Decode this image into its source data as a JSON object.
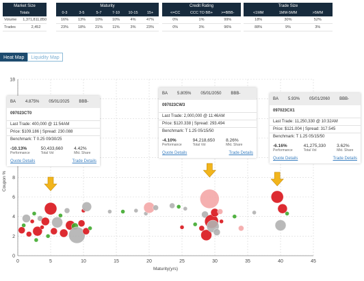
{
  "summary": {
    "market_size": {
      "header": "Market Size",
      "subheader": "Totals",
      "rows": [
        {
          "label": "Volume",
          "value": "1,371,811,850"
        },
        {
          "label": "Trades",
          "value": "2,452"
        }
      ]
    },
    "maturity": {
      "header": "Maturity",
      "columns": [
        "0-3",
        "3-5",
        "5-7",
        "7-10",
        "10-15",
        "15+"
      ],
      "rows": [
        [
          "16%",
          "13%",
          "10%",
          "10%",
          "4%",
          "47%"
        ],
        [
          "23%",
          "18%",
          "21%",
          "11%",
          "3%",
          "23%"
        ]
      ]
    },
    "credit_rating": {
      "header": "Credit Rating",
      "columns": [
        "<=CC",
        "CCC TO BB+",
        ">=BBB-"
      ],
      "rows": [
        [
          "0%",
          "1%",
          "99%"
        ],
        [
          "0%",
          "3%",
          "96%"
        ]
      ]
    },
    "trade_size": {
      "header": "Trade Size",
      "columns": [
        "<1MM",
        "1MM-5MM",
        ">5MM"
      ],
      "rows": [
        [
          "18%",
          "30%",
          "52%"
        ],
        [
          "88%",
          "9%",
          "3%"
        ]
      ]
    }
  },
  "tabs": [
    {
      "label": "Heat Map",
      "active": true
    },
    {
      "label": "Liquidity Map",
      "active": false
    }
  ],
  "cards": [
    {
      "ticker": "BA",
      "coupon": "4.875%",
      "maturity": "05/01/2025",
      "rating": "BBB-",
      "cusip": "097023CT0",
      "last_trade": "Last Trade: 400,000 @ 11:54AM",
      "price": "Price: $109.186 | Spread: 230.088",
      "benchmark": "Benchmark: T 0.25 09/30/25",
      "performance": "-10.13%",
      "total_vol": "50,433,660",
      "mkt_share": "4.42%",
      "perf_label": "Performance",
      "vol_label": "Total Vol",
      "share_label": "Mkt. Share",
      "quote_link": "Quote Details",
      "trade_link": "Trade Details"
    },
    {
      "ticker": "BA",
      "coupon": "5.805%",
      "maturity": "05/01/2050",
      "rating": "BBB-",
      "cusip": "097023CW3",
      "last_trade": "Last Trade: 2,000,000 @ 11:46AM",
      "price": "Price: $120.338 | Spread: 293.494",
      "benchmark": "Benchmark: T 1.25 05/15/50",
      "performance": "-4.10%",
      "total_vol": "94,218,650",
      "mkt_share": "8.26%",
      "perf_label": "Performance",
      "vol_label": "Total Vol",
      "share_label": "Mkt. Share",
      "quote_link": "Quote Details",
      "trade_link": "Trade Details"
    },
    {
      "ticker": "BA",
      "coupon": "5.93%",
      "maturity": "05/01/2060",
      "rating": "BBB-",
      "cusip": "097023CX1",
      "last_trade": "Last Trade: 11,250,330 @ 10:32AM",
      "price": "Price: $121.004 | Spread: 317.545",
      "benchmark": "Benchmark: T 1.25 05/15/50",
      "performance": "-6.16%",
      "total_vol": "41,275,330",
      "mkt_share": "3.62%",
      "perf_label": "Performance",
      "vol_label": "Total Vol",
      "share_label": "Mkt. Share",
      "quote_link": "Quote Details",
      "trade_link": "Trade Details"
    }
  ],
  "chart_data": {
    "type": "scatter",
    "xlabel": "Maturity(yrs)",
    "ylabel": "Coupon %",
    "xlim": [
      0,
      45
    ],
    "ylim": [
      0,
      18
    ],
    "xticks": [
      0,
      5,
      10,
      15,
      20,
      25,
      30,
      35,
      40,
      45
    ],
    "yticks": [
      0,
      2,
      4,
      6,
      8,
      10,
      12,
      14,
      16,
      18
    ],
    "grid": true,
    "colors": {
      "red": "#d9141b",
      "green": "#3faa2e",
      "gray": "#b1b1b1",
      "pink": "#f4a7a7",
      "arrow": "#f2b51c"
    },
    "points": [
      {
        "x": 0.6,
        "y": 2.6,
        "r": 5,
        "c": "red"
      },
      {
        "x": 0.9,
        "y": 3.1,
        "r": 3,
        "c": "green"
      },
      {
        "x": 1.3,
        "y": 3.8,
        "r": 6,
        "c": "gray"
      },
      {
        "x": 1.7,
        "y": 2.2,
        "r": 4,
        "c": "red"
      },
      {
        "x": 2.2,
        "y": 3.5,
        "r": 3,
        "c": "red"
      },
      {
        "x": 2.5,
        "y": 4.3,
        "r": 3,
        "c": "green"
      },
      {
        "x": 2.8,
        "y": 1.6,
        "r": 3,
        "c": "green"
      },
      {
        "x": 3.0,
        "y": 2.5,
        "r": 7,
        "c": "red"
      },
      {
        "x": 3.4,
        "y": 3.8,
        "r": 4,
        "c": "gray"
      },
      {
        "x": 3.7,
        "y": 2.9,
        "r": 3,
        "c": "red"
      },
      {
        "x": 4.2,
        "y": 3.5,
        "r": 6,
        "c": "red"
      },
      {
        "x": 4.6,
        "y": 2.0,
        "r": 3,
        "c": "green"
      },
      {
        "x": 5.0,
        "y": 4.8,
        "r": 9,
        "c": "red"
      },
      {
        "x": 5.5,
        "y": 2.5,
        "r": 5,
        "c": "red"
      },
      {
        "x": 6.0,
        "y": 3.4,
        "r": 8,
        "c": "gray"
      },
      {
        "x": 6.5,
        "y": 4.1,
        "r": 3,
        "c": "green"
      },
      {
        "x": 7.0,
        "y": 2.3,
        "r": 6,
        "c": "red"
      },
      {
        "x": 7.5,
        "y": 4.6,
        "r": 4,
        "c": "gray"
      },
      {
        "x": 8.0,
        "y": 3.1,
        "r": 7,
        "c": "red"
      },
      {
        "x": 8.7,
        "y": 3.0,
        "r": 5,
        "c": "green"
      },
      {
        "x": 9.0,
        "y": 2.1,
        "r": 12,
        "c": "gray"
      },
      {
        "x": 9.7,
        "y": 3.3,
        "r": 5,
        "c": "red"
      },
      {
        "x": 10.0,
        "y": 4.6,
        "r": 3,
        "c": "red"
      },
      {
        "x": 10.4,
        "y": 2.5,
        "r": 5,
        "c": "red"
      },
      {
        "x": 10.5,
        "y": 5.0,
        "r": 7,
        "c": "gray"
      },
      {
        "x": 11.0,
        "y": 2.8,
        "r": 3,
        "c": "green"
      },
      {
        "x": 14.0,
        "y": 4.5,
        "r": 3,
        "c": "gray"
      },
      {
        "x": 16.0,
        "y": 4.5,
        "r": 3,
        "c": "green"
      },
      {
        "x": 18.0,
        "y": 4.6,
        "r": 3,
        "c": "gray"
      },
      {
        "x": 19.5,
        "y": 4.3,
        "r": 3,
        "c": "gray"
      },
      {
        "x": 20.0,
        "y": 4.9,
        "r": 8,
        "c": "pink"
      },
      {
        "x": 21.0,
        "y": 4.9,
        "r": 4,
        "c": "gray"
      },
      {
        "x": 23.5,
        "y": 5.1,
        "r": 4,
        "c": "gray"
      },
      {
        "x": 24.5,
        "y": 5.0,
        "r": 3,
        "c": "green"
      },
      {
        "x": 25.0,
        "y": 2.9,
        "r": 3,
        "c": "red"
      },
      {
        "x": 25.5,
        "y": 4.8,
        "r": 3,
        "c": "gray"
      },
      {
        "x": 27.0,
        "y": 3.2,
        "r": 3,
        "c": "green"
      },
      {
        "x": 28.0,
        "y": 2.8,
        "r": 4,
        "c": "red"
      },
      {
        "x": 28.5,
        "y": 4.2,
        "r": 5,
        "c": "gray"
      },
      {
        "x": 28.7,
        "y": 2.1,
        "r": 8,
        "c": "red"
      },
      {
        "x": 29.2,
        "y": 5.8,
        "r": 14,
        "c": "pink"
      },
      {
        "x": 29.5,
        "y": 3.5,
        "r": 10,
        "c": "red"
      },
      {
        "x": 29.7,
        "y": 3.0,
        "r": 9,
        "c": "gray"
      },
      {
        "x": 30.0,
        "y": 4.4,
        "r": 6,
        "c": "red"
      },
      {
        "x": 30.3,
        "y": 2.4,
        "r": 5,
        "c": "gray"
      },
      {
        "x": 30.8,
        "y": 4.5,
        "r": 4,
        "c": "pink"
      },
      {
        "x": 31.0,
        "y": 3.5,
        "r": 3,
        "c": "red"
      },
      {
        "x": 33.0,
        "y": 4.0,
        "r": 3,
        "c": "green"
      },
      {
        "x": 34.0,
        "y": 2.8,
        "r": 4,
        "c": "pink"
      },
      {
        "x": 36.0,
        "y": 4.4,
        "r": 3,
        "c": "gray"
      },
      {
        "x": 39.5,
        "y": 6.0,
        "r": 9,
        "c": "red"
      },
      {
        "x": 40.0,
        "y": 3.1,
        "r": 8,
        "c": "gray"
      },
      {
        "x": 40.3,
        "y": 4.8,
        "r": 7,
        "c": "red"
      },
      {
        "x": 41.0,
        "y": 4.3,
        "r": 3,
        "c": "green"
      }
    ],
    "arrows": [
      {
        "x": 5.0,
        "y": 6.9
      },
      {
        "x": 29.2,
        "y": 8.3
      },
      {
        "x": 39.5,
        "y": 7.4
      }
    ]
  }
}
